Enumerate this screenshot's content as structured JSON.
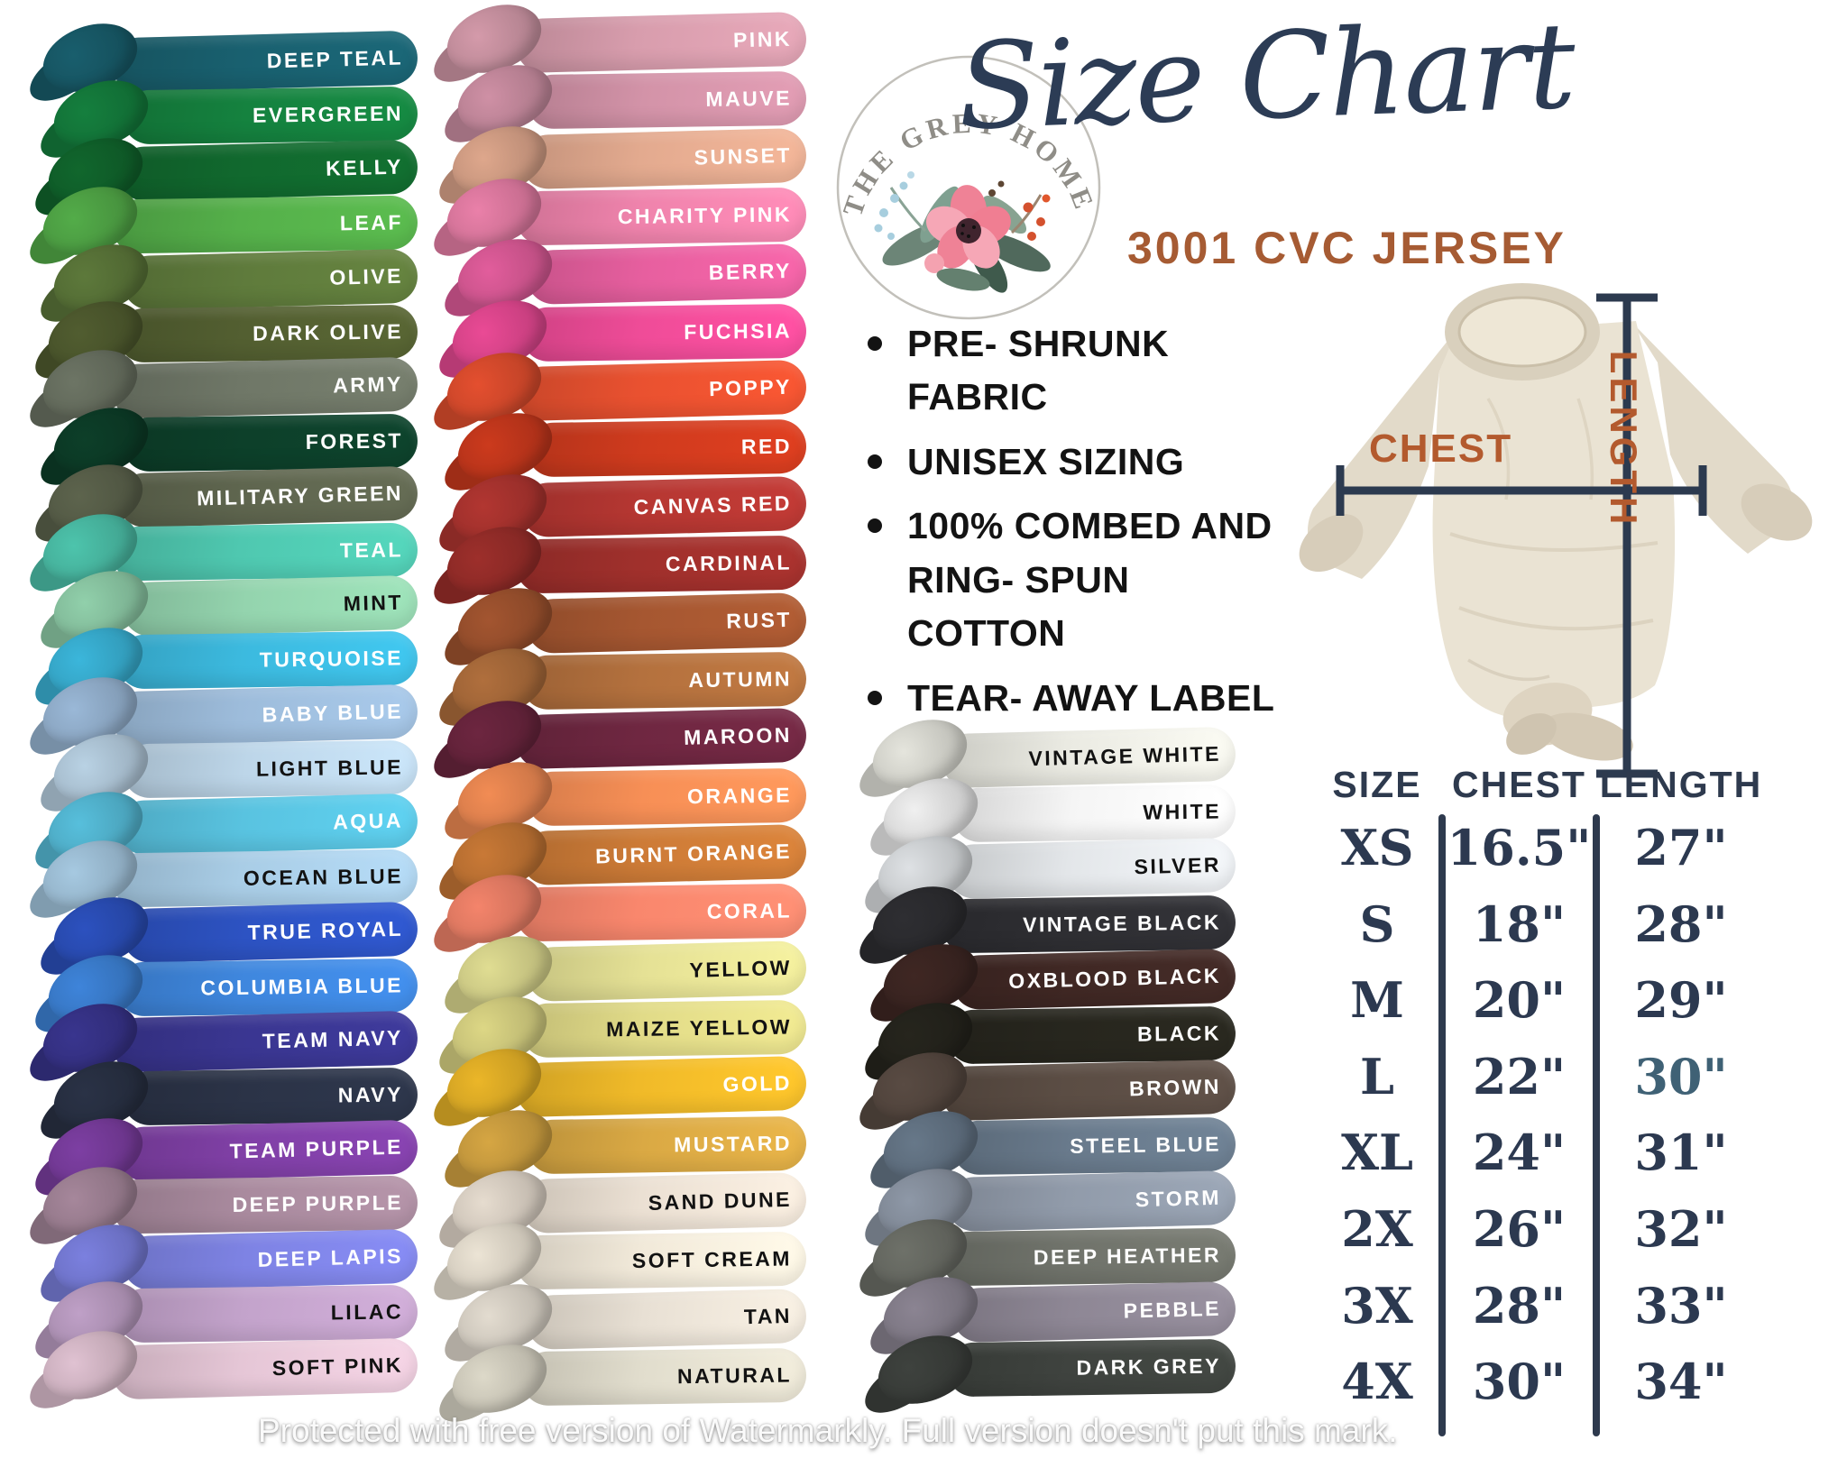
{
  "logo": {
    "brand": "THE GREY HOME CO.",
    "title": "Size Chart",
    "subtitle": "3001 CVC JERSEY"
  },
  "features": [
    "PRE- SHRUNK FABRIC",
    "UNISEX SIZING",
    "100% COMBED AND RING- SPUN COTTON",
    "TEAR- AWAY LABEL"
  ],
  "shirt_diagram": {
    "chest_label": "CHEST",
    "length_label": "LENGTH",
    "line_color": "#2c3a4f",
    "label_color": "#b35a2e",
    "shirt_color": "#eae3d3"
  },
  "size_table": {
    "headers": [
      "SIZE",
      "CHEST",
      "LENGTH"
    ],
    "rows": [
      {
        "size": "XS",
        "chest": "16.5\"",
        "length": "27\""
      },
      {
        "size": "S",
        "chest": "18\"",
        "length": "28\""
      },
      {
        "size": "M",
        "chest": "20\"",
        "length": "29\""
      },
      {
        "size": "L",
        "chest": "22\"",
        "length": "30\"",
        "length_accent": "#3f6175"
      },
      {
        "size": "XL",
        "chest": "24\"",
        "length": "31\""
      },
      {
        "size": "2X",
        "chest": "26\"",
        "length": "32\""
      },
      {
        "size": "3X",
        "chest": "28\"",
        "length": "33\""
      },
      {
        "size": "4X",
        "chest": "30\"",
        "length": "34\""
      }
    ]
  },
  "columns": [
    {
      "name": "greens-blues-purples",
      "swatches": [
        {
          "label": "DEEP TEAL",
          "color": "#19606f",
          "text_dark": false
        },
        {
          "label": "EVERGREEN",
          "color": "#15823f",
          "text_dark": false
        },
        {
          "label": "KELLY",
          "color": "#11692e",
          "text_dark": false
        },
        {
          "label": "LEAF",
          "color": "#55b04a",
          "text_dark": false
        },
        {
          "label": "OLIVE",
          "color": "#5f7b3c",
          "text_dark": false
        },
        {
          "label": "DARK OLIVE",
          "color": "#535f31",
          "text_dark": false
        },
        {
          "label": "ARMY",
          "color": "#6f7767",
          "text_dark": false
        },
        {
          "label": "FOREST",
          "color": "#0d402a",
          "text_dark": false
        },
        {
          "label": "MILITARY GREEN",
          "color": "#5f664f",
          "text_dark": false
        },
        {
          "label": "TEAL",
          "color": "#4fc8b0",
          "text_dark": false
        },
        {
          "label": "MINT",
          "color": "#94d4ae",
          "text_dark": true
        },
        {
          "label": "TURQUOISE",
          "color": "#3cbadf",
          "text_dark": false
        },
        {
          "label": "BABY BLUE",
          "color": "#9dbcdb",
          "text_dark": false
        },
        {
          "label": "LIGHT BLUE",
          "color": "#bdd6e9",
          "text_dark": true
        },
        {
          "label": "AQUA",
          "color": "#59c3e0",
          "text_dark": false
        },
        {
          "label": "OCEAN BLUE",
          "color": "#a9cde6",
          "text_dark": true
        },
        {
          "label": "TRUE ROYAL",
          "color": "#2d53c3",
          "text_dark": false
        },
        {
          "label": "COLUMBIA BLUE",
          "color": "#3f87de",
          "text_dark": false
        },
        {
          "label": "TEAM NAVY",
          "color": "#3a3691",
          "text_dark": false
        },
        {
          "label": "NAVY",
          "color": "#2b3347",
          "text_dark": false
        },
        {
          "label": "TEAM PURPLE",
          "color": "#8040a6",
          "text_dark": false
        },
        {
          "label": "DEEP PURPLE",
          "color": "#a98a9e",
          "text_dark": false
        },
        {
          "label": "DEEP LAPIS",
          "color": "#7e83e4",
          "text_dark": false
        },
        {
          "label": "LILAC",
          "color": "#c3a3cb",
          "text_dark": true
        },
        {
          "label": "SOFT PINK",
          "color": "#e5c6d6",
          "text_dark": true
        }
      ]
    },
    {
      "name": "pinks-reds-yellows",
      "swatches": [
        {
          "label": "PINK",
          "color": "#d89dad",
          "text_dark": false
        },
        {
          "label": "MAUVE",
          "color": "#d393a8",
          "text_dark": false
        },
        {
          "label": "SUNSET",
          "color": "#e3aa8f",
          "text_dark": false
        },
        {
          "label": "CHARITY PINK",
          "color": "#ef83ac",
          "text_dark": false
        },
        {
          "label": "BERRY",
          "color": "#e75f9f",
          "text_dark": false
        },
        {
          "label": "FUCHSIA",
          "color": "#ef4c98",
          "text_dark": false
        },
        {
          "label": "POPPY",
          "color": "#e95130",
          "text_dark": false
        },
        {
          "label": "RED",
          "color": "#d03b1e",
          "text_dark": false
        },
        {
          "label": "CANVAS RED",
          "color": "#b63732",
          "text_dark": false
        },
        {
          "label": "CARDINAL",
          "color": "#a0302c",
          "text_dark": false
        },
        {
          "label": "RUST",
          "color": "#a65731",
          "text_dark": false
        },
        {
          "label": "AUTUMN",
          "color": "#b4713e",
          "text_dark": false
        },
        {
          "label": "MAROON",
          "color": "#6f2741",
          "text_dark": false
        },
        {
          "label": "ORANGE",
          "color": "#f78f56",
          "text_dark": false
        },
        {
          "label": "BURNT ORANGE",
          "color": "#cd7b37",
          "text_dark": false
        },
        {
          "label": "CORAL",
          "color": "#f9876d",
          "text_dark": false
        },
        {
          "label": "YELLOW",
          "color": "#e5e195",
          "text_dark": true
        },
        {
          "label": "MAIZE YELLOW",
          "color": "#e1db88",
          "text_dark": true
        },
        {
          "label": "GOLD",
          "color": "#f0ba29",
          "text_dark": false
        },
        {
          "label": "MUSTARD",
          "color": "#daa944",
          "text_dark": false
        },
        {
          "label": "SAND DUNE",
          "color": "#ebe0d3",
          "text_dark": true
        },
        {
          "label": "SOFT CREAM",
          "color": "#f1e9d9",
          "text_dark": true
        },
        {
          "label": "TAN",
          "color": "#e8e0d4",
          "text_dark": true
        },
        {
          "label": "NATURAL",
          "color": "#e1ddcd",
          "text_dark": true
        }
      ]
    },
    {
      "name": "neutrals",
      "swatches": [
        {
          "label": "VINTAGE WHITE",
          "color": "#eaeae2",
          "text_dark": true
        },
        {
          "label": "WHITE",
          "color": "#f5f5f5",
          "text_dark": true
        },
        {
          "label": "SILVER",
          "color": "#e3e6e9",
          "text_dark": true
        },
        {
          "label": "VINTAGE BLACK",
          "color": "#2f2f33",
          "text_dark": false
        },
        {
          "label": "OXBLOOD BLACK",
          "color": "#402824",
          "text_dark": false
        },
        {
          "label": "BLACK",
          "color": "#27261e",
          "text_dark": false
        },
        {
          "label": "BROWN",
          "color": "#5b4d44",
          "text_dark": false
        },
        {
          "label": "STEEL BLUE",
          "color": "#697a8c",
          "text_dark": false
        },
        {
          "label": "STORM",
          "color": "#919baa",
          "text_dark": false
        },
        {
          "label": "DEEP HEATHER",
          "color": "#70736b",
          "text_dark": false
        },
        {
          "label": "PEBBLE",
          "color": "#8e8795",
          "text_dark": false
        },
        {
          "label": "DARK GREY",
          "color": "#3f433f",
          "text_dark": false
        }
      ]
    }
  ],
  "watermark": "Protected with free version of Watermarkly. Full version doesn't put this mark."
}
